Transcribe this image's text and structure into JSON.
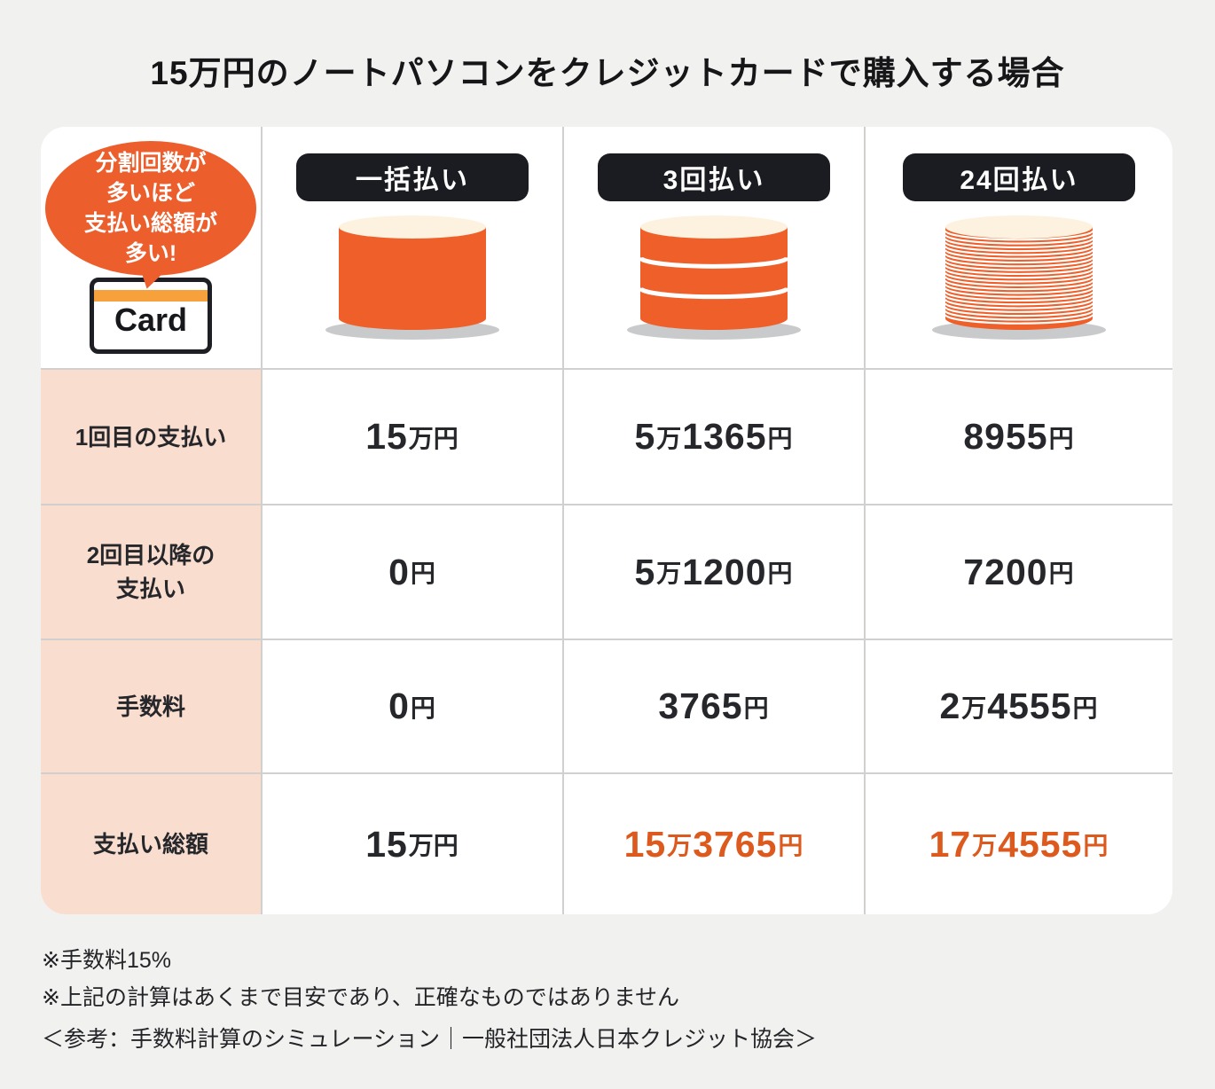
{
  "title": "15万円のノートパソコンをクレジットカードで購入する場合",
  "callout": {
    "bubble_lines": [
      "分割回数が",
      "多いほど",
      "支払い総額が",
      "多い!"
    ],
    "card_label": "Card"
  },
  "columns": [
    {
      "label": "一括払い",
      "coins": 1
    },
    {
      "label": "3回払い",
      "coins": 3
    },
    {
      "label": "24回払い",
      "coins": 24
    }
  ],
  "rows": [
    {
      "label_lines": [
        "1回目の支払い"
      ],
      "values": [
        {
          "text": "15万円",
          "highlight": false
        },
        {
          "text": "5万1365円",
          "highlight": false
        },
        {
          "text": "8955円",
          "highlight": false
        }
      ]
    },
    {
      "label_lines": [
        "2回目以降の",
        "支払い"
      ],
      "values": [
        {
          "text": "0円",
          "highlight": false
        },
        {
          "text": "5万1200円",
          "highlight": false
        },
        {
          "text": "7200円",
          "highlight": false
        }
      ]
    },
    {
      "label_lines": [
        "手数料"
      ],
      "values": [
        {
          "text": "0円",
          "highlight": false
        },
        {
          "text": "3765円",
          "highlight": false
        },
        {
          "text": "2万4555円",
          "highlight": false
        }
      ]
    },
    {
      "label_lines": [
        "支払い総額"
      ],
      "values": [
        {
          "text": "15万円",
          "highlight": false
        },
        {
          "text": "15万3765円",
          "highlight": true
        },
        {
          "text": "17万4555円",
          "highlight": true
        }
      ]
    }
  ],
  "notes": [
    "※手数料15%",
    "※上記の計算はあくまで目安であり、正確なものではありません"
  ],
  "reference": "＜参考：手数料計算のシミュレーション｜一般社団法人日本クレジット協会＞",
  "colors": {
    "page_background": "#f1f1f0",
    "accent_orange": "#ec5e2c",
    "coin_orange": "#ef5f2a",
    "coin_top_cream": "#fdf2df",
    "shadow_gray": "#c9cacb",
    "highlight_text": "#dd5a1e",
    "badge_black": "#1a1c21",
    "label_peach": "#f9ddcf",
    "grid_line": "#d2d0ce",
    "card_stripe_amber": "#f6a13b"
  }
}
